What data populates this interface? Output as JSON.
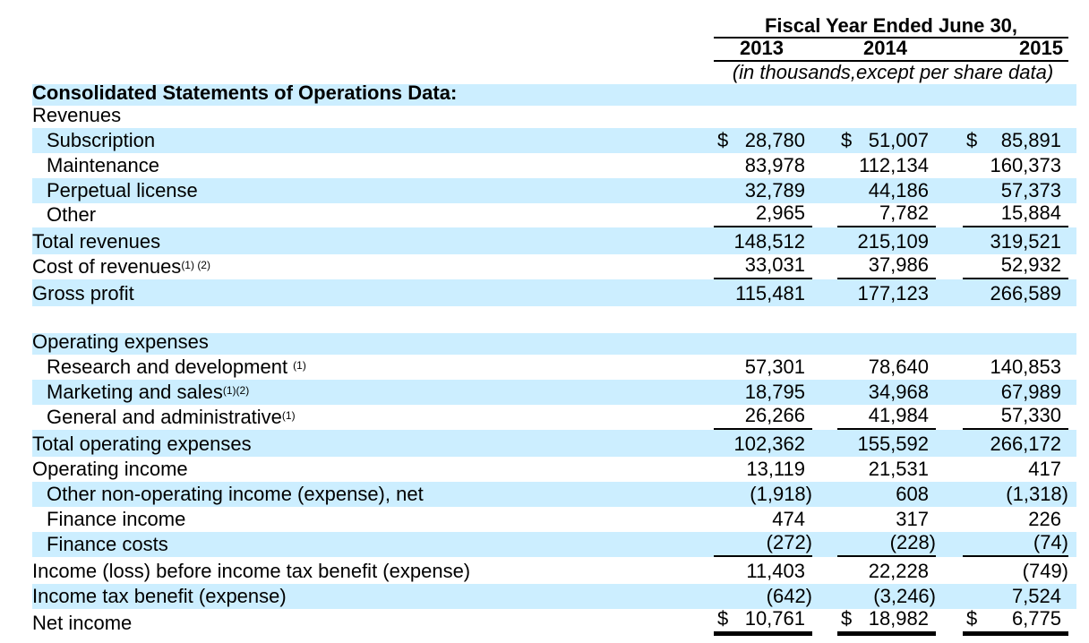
{
  "header": {
    "title": "Fiscal Year Ended June 30,",
    "years": [
      "2013",
      "2014",
      "2015"
    ],
    "units": "(in thousands,except per share data)"
  },
  "rows": [
    {
      "label": "Consolidated Statements of Operations Data:",
      "bold": true,
      "values": [
        "",
        "",
        ""
      ]
    },
    {
      "label": "Revenues",
      "values": [
        "",
        "",
        ""
      ]
    },
    {
      "label": "Subscription",
      "indent": true,
      "dollar": true,
      "values": [
        "28,780",
        "51,007",
        "85,891"
      ]
    },
    {
      "label": "Maintenance",
      "indent": true,
      "values": [
        "83,978",
        "112,134",
        "160,373"
      ]
    },
    {
      "label": "Perpetual license",
      "indent": true,
      "values": [
        "32,789",
        "44,186",
        "57,373"
      ]
    },
    {
      "label": "Other",
      "indent": true,
      "values": [
        "2,965",
        "7,782",
        "15,884"
      ]
    },
    {
      "label": "Total revenues",
      "values": [
        "148,512",
        "215,109",
        "319,521"
      ]
    },
    {
      "label": "Cost of revenues",
      "sup": "(1) (2)",
      "values": [
        "33,031",
        "37,986",
        "52,932"
      ]
    },
    {
      "label": "Gross profit",
      "values": [
        "115,481",
        "177,123",
        "266,589"
      ]
    },
    {
      "label": "",
      "values": [
        "",
        "",
        ""
      ]
    },
    {
      "label": "Operating expenses",
      "values": [
        "",
        "",
        ""
      ]
    },
    {
      "label": "Research and development ",
      "sup": "(1)",
      "indent": true,
      "values": [
        "57,301",
        "78,640",
        "140,853"
      ]
    },
    {
      "label": "Marketing and sales",
      "sup": "(1)(2)",
      "indent": true,
      "values": [
        "18,795",
        "34,968",
        "67,989"
      ]
    },
    {
      "label": "General and administrative",
      "sup": "(1)",
      "indent": true,
      "values": [
        "26,266",
        "41,984",
        "57,330"
      ]
    },
    {
      "label": "Total operating expenses",
      "values": [
        "102,362",
        "155,592",
        "266,172"
      ]
    },
    {
      "label": "Operating income",
      "values": [
        "13,119",
        "21,531",
        "417"
      ]
    },
    {
      "label": "Other non-operating income (expense), net",
      "indent": true,
      "values": [
        "(1,918)",
        "608",
        "(1,318)"
      ]
    },
    {
      "label": "Finance income",
      "indent": true,
      "values": [
        "474",
        "317",
        "226"
      ]
    },
    {
      "label": "Finance costs",
      "indent": true,
      "values": [
        "(272)",
        "(228)",
        "(74)"
      ]
    },
    {
      "label": "Income (loss) before income tax benefit (expense)",
      "values": [
        "11,403",
        "22,228",
        "(749)"
      ]
    },
    {
      "label": "Income tax benefit (expense)",
      "values": [
        "(642)",
        "(3,246)",
        "7,524"
      ]
    },
    {
      "label": "Net income",
      "dollar": true,
      "values": [
        "10,761",
        "18,982",
        "6,775"
      ]
    }
  ],
  "colors": {
    "row_shade": "#cceeff",
    "text": "#000000"
  }
}
